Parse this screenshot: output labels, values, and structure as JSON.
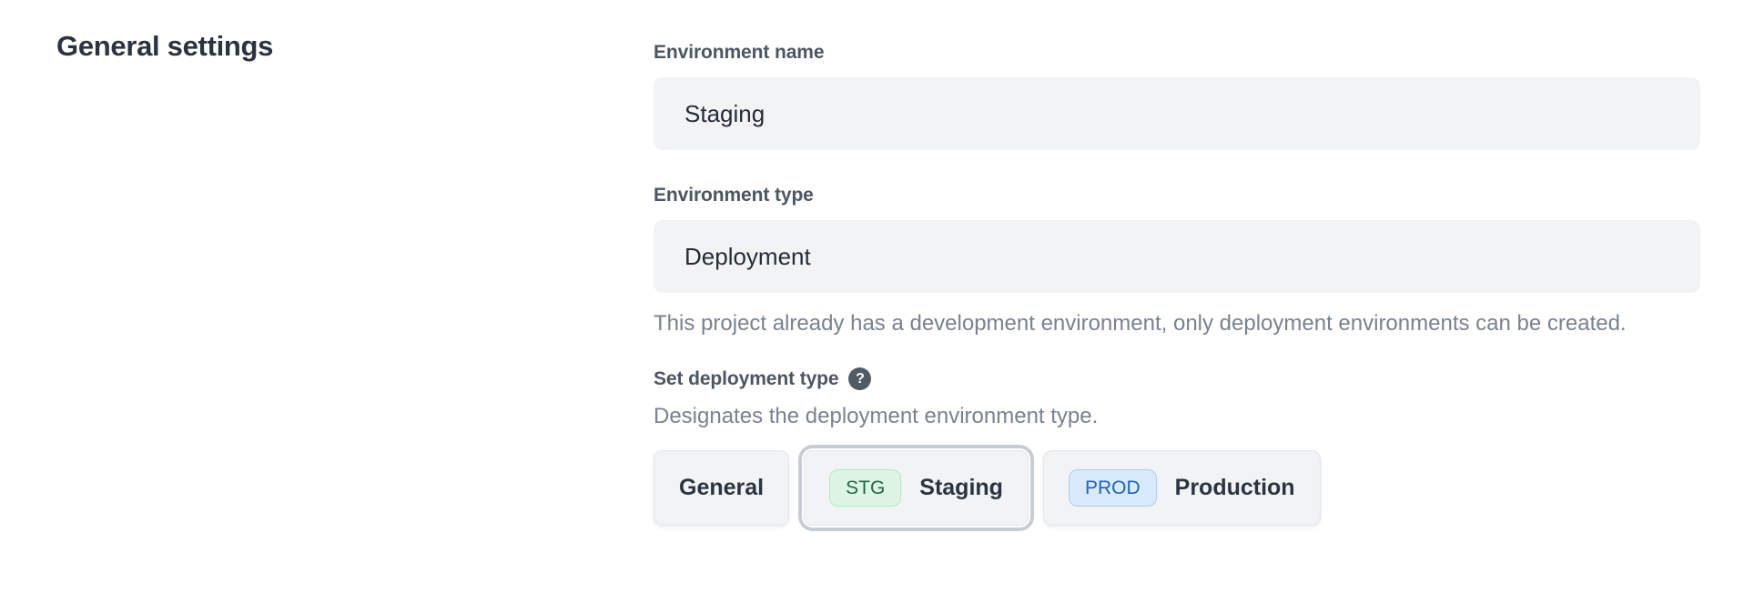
{
  "heading": "General settings",
  "fields": {
    "environment_name": {
      "label": "Environment name",
      "value": "Staging"
    },
    "environment_type": {
      "label": "Environment type",
      "value": "Deployment",
      "help": "This project already has a development environment, only deployment environments can be created."
    }
  },
  "deployment_type": {
    "label": "Set deployment type",
    "help_icon": "?",
    "description": "Designates the deployment environment type.",
    "options": [
      {
        "label": "General",
        "badge": "",
        "selected": false
      },
      {
        "label": "Staging",
        "badge": "STG",
        "badge_color": "green",
        "selected": true
      },
      {
        "label": "Production",
        "badge": "PROD",
        "badge_color": "blue",
        "selected": false
      }
    ]
  },
  "colors": {
    "heading_text": "#2b3340",
    "label_text": "#4c5562",
    "input_bg": "#f2f3f4",
    "input_text": "#242c38",
    "help_text": "#79828e",
    "button_bg": "#f2f3f5",
    "selected_ring": "#c8cdd3",
    "badge_stg_bg": "#dcf5e4",
    "badge_stg_border": "#b2e6c3",
    "badge_stg_text": "#266548",
    "badge_prod_bg": "#d9eafc",
    "badge_prod_border": "#accdf2",
    "badge_prod_text": "#2262b3",
    "help_icon_bg": "#515b66"
  }
}
